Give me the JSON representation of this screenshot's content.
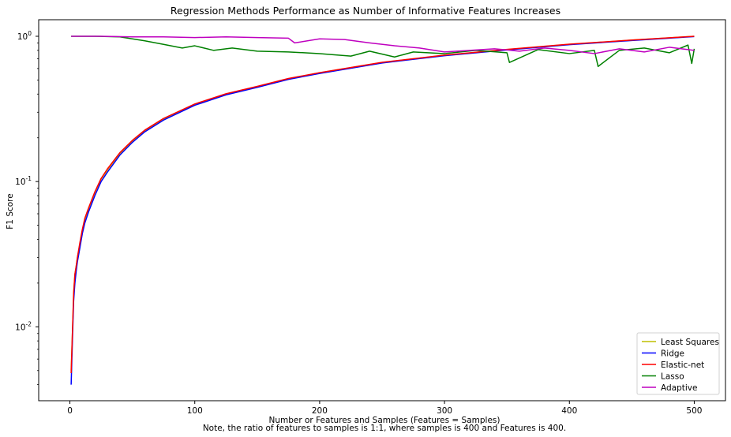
{
  "chart_data": {
    "type": "line",
    "title": "Regression Methods Performance as Number of Informative Features Increases",
    "xlabel": "Number or Features and Samples (Features = Samples)",
    "ylabel": "F1 Score",
    "note": "Note, the ratio of features to samples is 1:1, where samples is 400 and Features is 400.",
    "y_scale": "log",
    "xlim": [
      -25,
      525
    ],
    "ylim": [
      0.0031,
      1.3
    ],
    "x_ticks": [
      0,
      100,
      200,
      300,
      400,
      500
    ],
    "x_tick_labels": [
      "0",
      "100",
      "200",
      "300",
      "400",
      "500"
    ],
    "y_ticks": [
      1,
      0.1,
      0.01
    ],
    "y_tick_labels": [
      {
        "base": "10",
        "exp": "0"
      },
      {
        "base": "10",
        "exp": "-1"
      },
      {
        "base": "10",
        "exp": "-2"
      }
    ],
    "legend_position": "lower-right",
    "series": [
      {
        "name": "Least Squares",
        "color": "#bfbf00",
        "x": [
          1,
          2,
          3,
          4,
          5,
          6,
          8,
          10,
          12,
          15,
          20,
          25,
          30,
          40,
          50,
          60,
          75,
          100,
          125,
          150,
          175,
          200,
          250,
          300,
          350,
          400,
          450,
          500
        ],
        "values": [
          0.005,
          0.009,
          0.017,
          0.023,
          0.026,
          0.03,
          0.037,
          0.046,
          0.055,
          0.065,
          0.084,
          0.104,
          0.12,
          0.156,
          0.19,
          0.224,
          0.27,
          0.34,
          0.4,
          0.45,
          0.51,
          0.56,
          0.66,
          0.74,
          0.81,
          0.88,
          0.94,
          1.0
        ]
      },
      {
        "name": "Ridge",
        "color": "#0000ff",
        "x": [
          1,
          2,
          3,
          4,
          5,
          6,
          8,
          10,
          12,
          15,
          20,
          25,
          30,
          40,
          50,
          60,
          75,
          100,
          125,
          150,
          175,
          200,
          250,
          300,
          350,
          400,
          450,
          500
        ],
        "values": [
          0.004,
          0.008,
          0.015,
          0.02,
          0.024,
          0.028,
          0.035,
          0.044,
          0.052,
          0.062,
          0.08,
          0.1,
          0.116,
          0.152,
          0.186,
          0.22,
          0.265,
          0.335,
          0.395,
          0.445,
          0.505,
          0.555,
          0.655,
          0.735,
          0.805,
          0.875,
          0.935,
          0.995
        ]
      },
      {
        "name": "Elastic-net",
        "color": "#ff0000",
        "x": [
          1,
          2,
          3,
          4,
          5,
          6,
          8,
          10,
          12,
          15,
          20,
          25,
          30,
          40,
          50,
          60,
          75,
          100,
          125,
          150,
          175,
          200,
          250,
          300,
          350,
          400,
          450,
          500
        ],
        "values": [
          0.0048,
          0.009,
          0.017,
          0.023,
          0.026,
          0.03,
          0.038,
          0.047,
          0.056,
          0.066,
          0.085,
          0.105,
          0.122,
          0.158,
          0.192,
          0.226,
          0.272,
          0.342,
          0.402,
          0.452,
          0.512,
          0.562,
          0.662,
          0.742,
          0.812,
          0.882,
          0.942,
          1.0
        ]
      },
      {
        "name": "Lasso",
        "color": "#008000",
        "x": [
          1,
          20,
          40,
          50,
          60,
          75,
          90,
          100,
          115,
          130,
          150,
          175,
          200,
          225,
          240,
          260,
          275,
          300,
          325,
          350,
          352,
          375,
          400,
          420,
          423,
          440,
          460,
          480,
          495,
          498,
          500
        ],
        "values": [
          1.0,
          1.0,
          0.99,
          0.96,
          0.93,
          0.88,
          0.83,
          0.86,
          0.8,
          0.83,
          0.79,
          0.78,
          0.76,
          0.73,
          0.79,
          0.72,
          0.78,
          0.76,
          0.8,
          0.77,
          0.66,
          0.81,
          0.76,
          0.8,
          0.62,
          0.8,
          0.83,
          0.77,
          0.87,
          0.65,
          0.82
        ]
      },
      {
        "name": "Adaptive",
        "color": "#bf00bf",
        "x": [
          1,
          25,
          50,
          75,
          100,
          125,
          150,
          175,
          180,
          200,
          220,
          240,
          260,
          280,
          300,
          320,
          340,
          360,
          380,
          400,
          420,
          440,
          460,
          480,
          500
        ],
        "values": [
          1.0,
          1.0,
          0.99,
          0.99,
          0.98,
          0.99,
          0.98,
          0.97,
          0.9,
          0.96,
          0.95,
          0.9,
          0.86,
          0.83,
          0.78,
          0.8,
          0.82,
          0.79,
          0.83,
          0.8,
          0.76,
          0.82,
          0.78,
          0.84,
          0.8
        ]
      }
    ]
  }
}
